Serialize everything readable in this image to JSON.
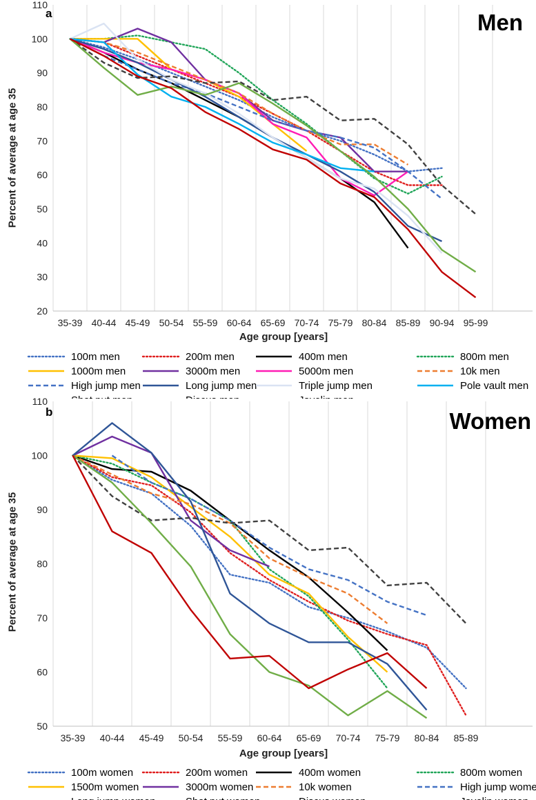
{
  "chart_data": [
    {
      "type": "line",
      "panel_label": "a",
      "title": "Men",
      "xlabel": "Age group [years]",
      "ylabel": "Percent of average at age 35",
      "ylim": [
        20,
        110
      ],
      "yticks": [
        "20",
        "30",
        "40",
        "50",
        "60",
        "70",
        "80",
        "90",
        "100",
        "110"
      ],
      "grid": "vertical",
      "categories": [
        "35-39",
        "40-44",
        "45-49",
        "50-54",
        "55-59",
        "60-64",
        "65-69",
        "70-74",
        "75-79",
        "80-84",
        "85-89",
        "90-94",
        "95-99"
      ],
      "series": [
        {
          "name": "100m men",
          "color": "#4472C4",
          "dash": "dot",
          "values": [
            100,
            97.5,
            94,
            90,
            86,
            82,
            77,
            73,
            70,
            66,
            61,
            62,
            null
          ]
        },
        {
          "name": "200m men",
          "color": "#E02020",
          "dash": "dot",
          "values": [
            100,
            99,
            95,
            91,
            87,
            83,
            78,
            73,
            67,
            61,
            57,
            57,
            null
          ]
        },
        {
          "name": "400m men",
          "color": "#000000",
          "dash": "solid",
          "values": [
            100,
            96,
            91,
            87,
            82,
            77,
            71,
            65,
            59,
            52,
            38.5,
            null,
            null
          ]
        },
        {
          "name": "800m men",
          "color": "#22A65A",
          "dash": "dot",
          "values": [
            100,
            100,
            101,
            99,
            97,
            90,
            82,
            75,
            67,
            59,
            54.5,
            59.5,
            null
          ]
        },
        {
          "name": "1000m men",
          "color": "#FFC000",
          "dash": "solid",
          "values": [
            100,
            100,
            100,
            91,
            88,
            83,
            75,
            67,
            null,
            null,
            null,
            null,
            null
          ]
        },
        {
          "name": "3000m men",
          "color": "#7030A0",
          "dash": "solid",
          "values": [
            100,
            99,
            103,
            99,
            88,
            84,
            76,
            73,
            71,
            61,
            61,
            null,
            null
          ]
        },
        {
          "name": "5000m men",
          "color": "#FF1CB4",
          "dash": "solid",
          "values": [
            100,
            96,
            93,
            91,
            88,
            84,
            75,
            71,
            59,
            54,
            61,
            null,
            null
          ]
        },
        {
          "name": "10k men",
          "color": "#ED7D31",
          "dash": "dash",
          "values": [
            100,
            99,
            96,
            92,
            88,
            84,
            78,
            73,
            69,
            69,
            63,
            null,
            null
          ]
        },
        {
          "name": "High jump men",
          "color": "#4472C4",
          "dash": "dash",
          "values": [
            100,
            95,
            91,
            87,
            84,
            80,
            76,
            73,
            71,
            68,
            61,
            53,
            null
          ]
        },
        {
          "name": "Long jump men",
          "color": "#2F5597",
          "dash": "solid",
          "values": [
            100,
            97,
            93,
            88,
            83,
            77,
            71,
            66,
            61,
            55,
            45,
            40.5,
            null
          ]
        },
        {
          "name": "Triple jump men",
          "color": "#DAE3F3",
          "dash": "solid",
          "values": [
            100,
            104.5,
            94,
            88,
            84,
            78,
            71,
            65,
            59,
            56,
            48,
            37,
            null
          ]
        },
        {
          "name": "Pole vault men",
          "color": "#00B0F0",
          "dash": "solid",
          "values": [
            100,
            99,
            89.5,
            83,
            80,
            75,
            69.5,
            66,
            62,
            61,
            null,
            null,
            null
          ]
        },
        {
          "name": "Shot put men",
          "color": "#404040",
          "dash": "dash",
          "values": [
            100,
            93,
            88.5,
            89,
            87,
            87.5,
            82,
            83,
            76,
            76.5,
            69,
            57,
            48.5
          ]
        },
        {
          "name": "Discus men",
          "color": "#70AD47",
          "dash": "solid",
          "values": [
            100,
            91.5,
            83.5,
            86,
            83.5,
            87,
            81,
            74.5,
            67,
            59.5,
            50,
            38,
            31.5
          ]
        },
        {
          "name": "Javelin men",
          "color": "#C00000",
          "dash": "solid",
          "values": [
            100,
            95,
            89,
            85.5,
            78.5,
            73.5,
            67.5,
            64.5,
            57.5,
            53.5,
            44,
            31.5,
            24
          ]
        }
      ]
    },
    {
      "type": "line",
      "panel_label": "b",
      "title": "Women",
      "xlabel": "Age group [years]",
      "ylabel": "Percent of average at age 35",
      "ylim": [
        50,
        110
      ],
      "yticks": [
        "50",
        "60",
        "70",
        "80",
        "90",
        "100",
        "110"
      ],
      "grid": "vertical",
      "categories": [
        "35-39",
        "40-44",
        "45-49",
        "50-54",
        "55-59",
        "60-64",
        "65-69",
        "70-74",
        "75-79",
        "80-84",
        "85-89"
      ],
      "series": [
        {
          "name": "100m women",
          "color": "#4472C4",
          "dash": "dot",
          "values": [
            100,
            95.5,
            93,
            87,
            78,
            76.5,
            72,
            70,
            67.5,
            64.5,
            57
          ]
        },
        {
          "name": "200m women",
          "color": "#E02020",
          "dash": "dot",
          "values": [
            100,
            96,
            94.5,
            89.5,
            82,
            77,
            73,
            69.5,
            67,
            65,
            52
          ]
        },
        {
          "name": "400m women",
          "color": "#000000",
          "dash": "solid",
          "values": [
            100,
            97.5,
            97,
            93.5,
            88,
            82.5,
            77.5,
            71,
            64,
            null,
            null
          ]
        },
        {
          "name": "800m women",
          "color": "#22A65A",
          "dash": "dot",
          "values": [
            100,
            98.5,
            95,
            92,
            88,
            79,
            74,
            66,
            57,
            null,
            null
          ]
        },
        {
          "name": "1500m women",
          "color": "#FFC000",
          "dash": "solid",
          "values": [
            100,
            99.5,
            96,
            90.5,
            85,
            78,
            74.5,
            66.5,
            60,
            null,
            null
          ]
        },
        {
          "name": "3000m women",
          "color": "#7030A0",
          "dash": "solid",
          "values": [
            100,
            103.5,
            100.5,
            88,
            82.5,
            79.5,
            null,
            null,
            null,
            null,
            null
          ]
        },
        {
          "name": "10k women",
          "color": "#ED7D31",
          "dash": "dash",
          "values": [
            100,
            96.5,
            93,
            91,
            87.5,
            81,
            77.5,
            74.5,
            69,
            null,
            null
          ]
        },
        {
          "name": "High jump women",
          "color": "#4472C4",
          "dash": "dash",
          "values": [
            null,
            100,
            95,
            92,
            88,
            83,
            79,
            77,
            73,
            70.5,
            null
          ]
        },
        {
          "name": "Long jump women",
          "color": "#2F5597",
          "dash": "solid",
          "values": [
            100,
            106,
            100.5,
            91.5,
            74.5,
            69,
            65.5,
            65.5,
            61.5,
            53,
            null
          ]
        },
        {
          "name": "Shot put women",
          "color": "#404040",
          "dash": "dash",
          "values": [
            100,
            92.5,
            88,
            88.5,
            87.5,
            88,
            82.5,
            83,
            76,
            76.5,
            69
          ]
        },
        {
          "name": "Discus women",
          "color": "#70AD47",
          "dash": "solid",
          "values": [
            100,
            95,
            87.5,
            79.5,
            67,
            60,
            57.5,
            52,
            56.5,
            51.5,
            null
          ]
        },
        {
          "name": "Javelin women",
          "color": "#C00000",
          "dash": "solid",
          "values": [
            100,
            86,
            82,
            71.5,
            62.5,
            63,
            57,
            60.5,
            63.5,
            57,
            null
          ]
        }
      ]
    }
  ]
}
